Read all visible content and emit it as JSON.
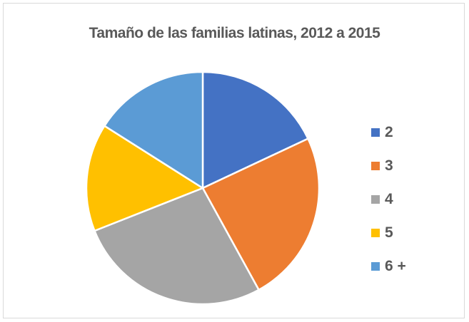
{
  "chart_data": {
    "type": "pie",
    "title": "Tamaño de las familias latinas, 2012 a 2015",
    "categories": [
      "2",
      "3",
      "4",
      "5",
      "6 +"
    ],
    "values": [
      18,
      24,
      27,
      15,
      16
    ],
    "colors": [
      "#4472C4",
      "#ED7D31",
      "#A5A5A5",
      "#FFC000",
      "#5B9BD5"
    ],
    "legend_position": "right"
  }
}
